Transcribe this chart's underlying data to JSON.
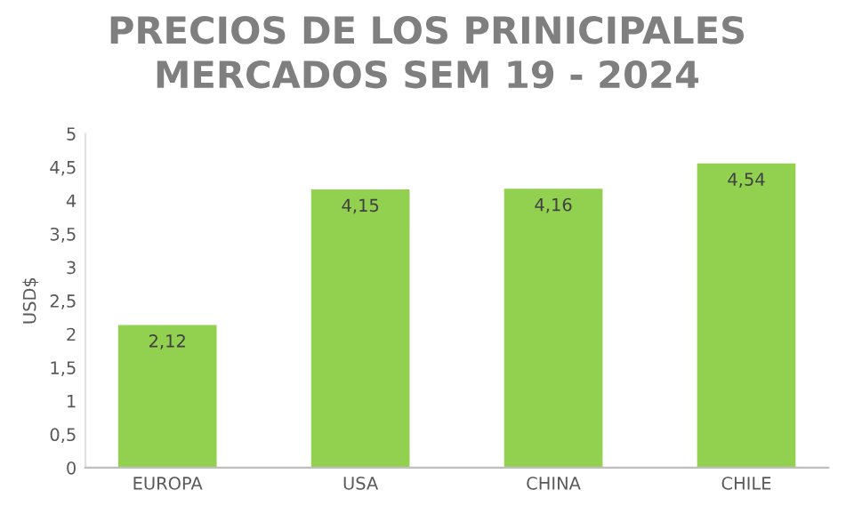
{
  "chart_data": {
    "type": "bar",
    "title": "PRECIOS DE LOS PRINICIPALES\nMERCADOS SEM 19 - 2024",
    "ylabel": "USD$",
    "categories": [
      "EUROPA",
      "USA",
      "CHINA",
      "CHILE"
    ],
    "values": [
      2.12,
      4.15,
      4.16,
      4.54
    ],
    "value_labels": [
      "2,12",
      "4,15",
      "4,16",
      "4,54"
    ],
    "color": "#92d050",
    "ylim": [
      0,
      5
    ],
    "yticks": [
      0,
      {
        "value": 0.5,
        "label": "0,5"
      },
      1,
      {
        "value": 1.5,
        "label": "1,5"
      },
      2,
      {
        "value": 2.5,
        "label": "2,5"
      },
      3,
      {
        "value": 3.5,
        "label": "3,5"
      },
      4,
      {
        "value": 4.5,
        "label": "4,5"
      },
      5
    ],
    "grid": false
  }
}
